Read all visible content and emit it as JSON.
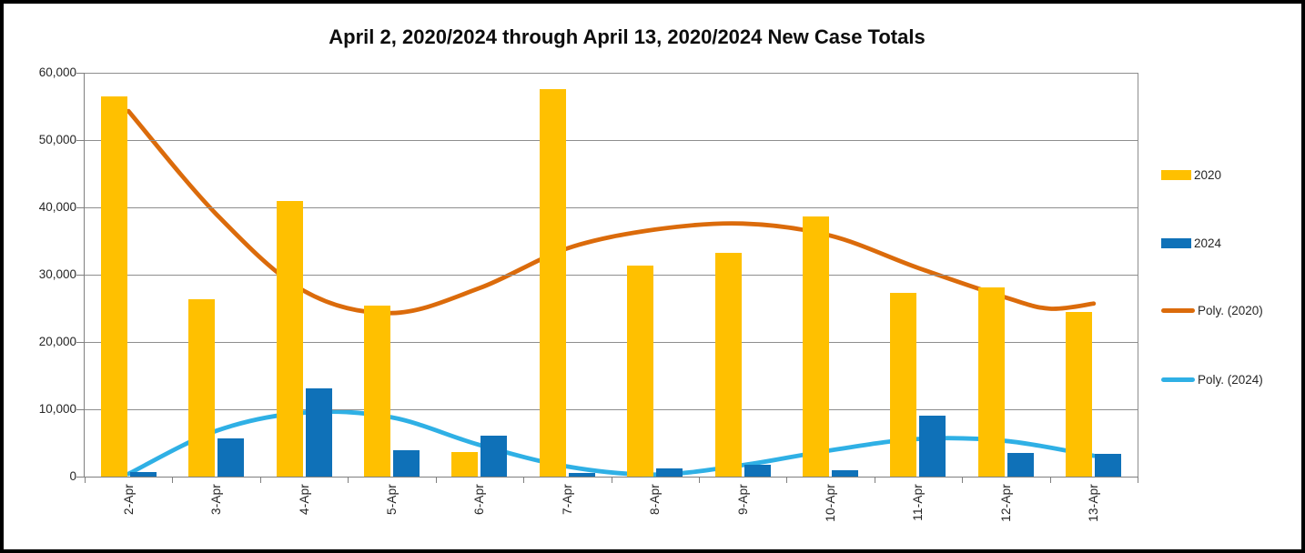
{
  "chart_data": {
    "type": "bar",
    "title": "April 2, 2020/2024 through April 13, 2020/2024 New Case Totals",
    "categories": [
      "2-Apr",
      "3-Apr",
      "4-Apr",
      "5-Apr",
      "6-Apr",
      "7-Apr",
      "8-Apr",
      "9-Apr",
      "10-Apr",
      "11-Apr",
      "12-Apr",
      "13-Apr"
    ],
    "y_axis": {
      "min": 0,
      "max": 60000,
      "tick_step": 10000,
      "tick_labels": [
        "60,000",
        "50,000",
        "40,000",
        "30,000",
        "20,000",
        "10,000",
        "0"
      ]
    },
    "grid": true,
    "legend_position": "right",
    "series": [
      {
        "name": "2020",
        "kind": "bar",
        "color": "#FFC000",
        "values": [
          56500,
          26300,
          40900,
          25400,
          3600,
          57500,
          31400,
          33200,
          38600,
          27300,
          28100,
          24400
        ]
      },
      {
        "name": "2024",
        "kind": "bar",
        "color": "#0F71B8",
        "values": [
          700,
          5700,
          13100,
          3900,
          6100,
          500,
          1200,
          1700,
          900,
          9100,
          3500,
          3400
        ]
      },
      {
        "name": "Poly. (2020)",
        "kind": "line",
        "color": "#DB6B0B",
        "points": [
          [
            0,
            54300
          ],
          [
            1,
            39000
          ],
          [
            2,
            27600
          ],
          [
            3,
            24300
          ],
          [
            4,
            28000
          ],
          [
            5,
            33900
          ],
          [
            6,
            36700
          ],
          [
            7,
            37600
          ],
          [
            8,
            35800
          ],
          [
            9,
            31000
          ],
          [
            10,
            26600
          ],
          [
            10.5,
            24950
          ],
          [
            11,
            25700
          ]
        ]
      },
      {
        "name": "Poly. (2024)",
        "kind": "line",
        "color": "#2FB0E5",
        "points": [
          [
            0,
            400
          ],
          [
            1,
            6800
          ],
          [
            2,
            9500
          ],
          [
            3,
            8800
          ],
          [
            4,
            4700
          ],
          [
            5,
            1500
          ],
          [
            6,
            300
          ],
          [
            7,
            1700
          ],
          [
            8,
            3900
          ],
          [
            9,
            5600
          ],
          [
            10,
            5300
          ],
          [
            11,
            3100
          ]
        ]
      }
    ]
  }
}
